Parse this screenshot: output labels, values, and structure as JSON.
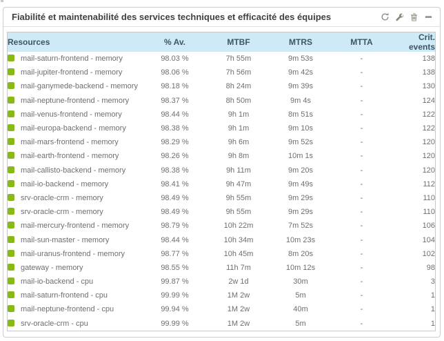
{
  "widget": {
    "title": "Fiabilité et maintenabilité des services techniques et efficacité des équipes",
    "toolbar": {
      "icons": [
        {
          "name": "refresh-icon"
        },
        {
          "name": "wrench-configure-icon"
        },
        {
          "name": "trash-delete-icon"
        },
        {
          "name": "minus-collapse-icon"
        }
      ]
    }
  },
  "colors": {
    "status_ok": "#88b917",
    "table_header_bg": "#cdeaf6",
    "table_header_text": "#3d5564",
    "row_text": "#6e6e6e",
    "icon": "#8b877c",
    "border": "#cccccc"
  },
  "table": {
    "columns": [
      "Resources",
      "% Av.",
      "MTBF",
      "MTRS",
      "MTTA",
      "Crit. events"
    ],
    "rows": [
      {
        "status": "ok",
        "resource": "mail-saturn-frontend - memory",
        "availability": "98.03 %",
        "mtbf": "7h 55m",
        "mtrs": "9m 53s",
        "mtta": "-",
        "crit_events": "138"
      },
      {
        "status": "ok",
        "resource": "mail-jupiter-frontend - memory",
        "availability": "98.06 %",
        "mtbf": "7h 56m",
        "mtrs": "9m 42s",
        "mtta": "-",
        "crit_events": "138"
      },
      {
        "status": "ok",
        "resource": "mail-ganymede-backend - memory",
        "availability": "98.18 %",
        "mtbf": "8h 24m",
        "mtrs": "9m 39s",
        "mtta": "-",
        "crit_events": "130"
      },
      {
        "status": "ok",
        "resource": "mail-neptune-frontend - memory",
        "availability": "98.37 %",
        "mtbf": "8h 50m",
        "mtrs": "9m 4s",
        "mtta": "-",
        "crit_events": "124"
      },
      {
        "status": "ok",
        "resource": "mail-venus-frontend - memory",
        "availability": "98.44 %",
        "mtbf": "9h 1m",
        "mtrs": "8m 51s",
        "mtta": "-",
        "crit_events": "122"
      },
      {
        "status": "ok",
        "resource": "mail-europa-backend - memory",
        "availability": "98.38 %",
        "mtbf": "9h 1m",
        "mtrs": "9m 10s",
        "mtta": "-",
        "crit_events": "122"
      },
      {
        "status": "ok",
        "resource": "mail-mars-frontend - memory",
        "availability": "98.29 %",
        "mtbf": "9h 6m",
        "mtrs": "9m 52s",
        "mtta": "-",
        "crit_events": "120"
      },
      {
        "status": "ok",
        "resource": "mail-earth-frontend - memory",
        "availability": "98.26 %",
        "mtbf": "9h 8m",
        "mtrs": "10m 1s",
        "mtta": "-",
        "crit_events": "120"
      },
      {
        "status": "ok",
        "resource": "mail-callisto-backend - memory",
        "availability": "98.38 %",
        "mtbf": "9h 11m",
        "mtrs": "9m 20s",
        "mtta": "-",
        "crit_events": "120"
      },
      {
        "status": "ok",
        "resource": "mail-io-backend - memory",
        "availability": "98.41 %",
        "mtbf": "9h 47m",
        "mtrs": "9m 49s",
        "mtta": "-",
        "crit_events": "112"
      },
      {
        "status": "ok",
        "resource": "srv-oracle-crm - memory",
        "availability": "98.49 %",
        "mtbf": "9h 55m",
        "mtrs": "9m 29s",
        "mtta": "-",
        "crit_events": "110"
      },
      {
        "status": "ok",
        "resource": "srv-oracle-crm - memory",
        "availability": "98.49 %",
        "mtbf": "9h 55m",
        "mtrs": "9m 29s",
        "mtta": "-",
        "crit_events": "110"
      },
      {
        "status": "ok",
        "resource": "mail-mercury-frontend - memory",
        "availability": "98.79 %",
        "mtbf": "10h 22m",
        "mtrs": "7m 52s",
        "mtta": "-",
        "crit_events": "106"
      },
      {
        "status": "ok",
        "resource": "mail-sun-master - memory",
        "availability": "98.44 %",
        "mtbf": "10h 34m",
        "mtrs": "10m 23s",
        "mtta": "-",
        "crit_events": "104"
      },
      {
        "status": "ok",
        "resource": "mail-uranus-frontend - memory",
        "availability": "98.77 %",
        "mtbf": "10h 45m",
        "mtrs": "8m 20s",
        "mtta": "-",
        "crit_events": "102"
      },
      {
        "status": "ok",
        "resource": "gateway - memory",
        "availability": "98.55 %",
        "mtbf": "11h 7m",
        "mtrs": "10m 12s",
        "mtta": "-",
        "crit_events": "98"
      },
      {
        "status": "ok",
        "resource": "mail-io-backend - cpu",
        "availability": "99.87 %",
        "mtbf": "2w 1d",
        "mtrs": "30m",
        "mtta": "-",
        "crit_events": "3"
      },
      {
        "status": "ok",
        "resource": "mail-saturn-frontend - cpu",
        "availability": "99.99 %",
        "mtbf": "1M 2w",
        "mtrs": "5m",
        "mtta": "-",
        "crit_events": "1"
      },
      {
        "status": "ok",
        "resource": "mail-neptune-frontend - cpu",
        "availability": "99.94 %",
        "mtbf": "1M 2w",
        "mtrs": "40m",
        "mtta": "-",
        "crit_events": "1"
      },
      {
        "status": "ok",
        "resource": "srv-oracle-crm - cpu",
        "availability": "99.99 %",
        "mtbf": "1M 2w",
        "mtrs": "5m",
        "mtta": "-",
        "crit_events": "1"
      }
    ]
  }
}
